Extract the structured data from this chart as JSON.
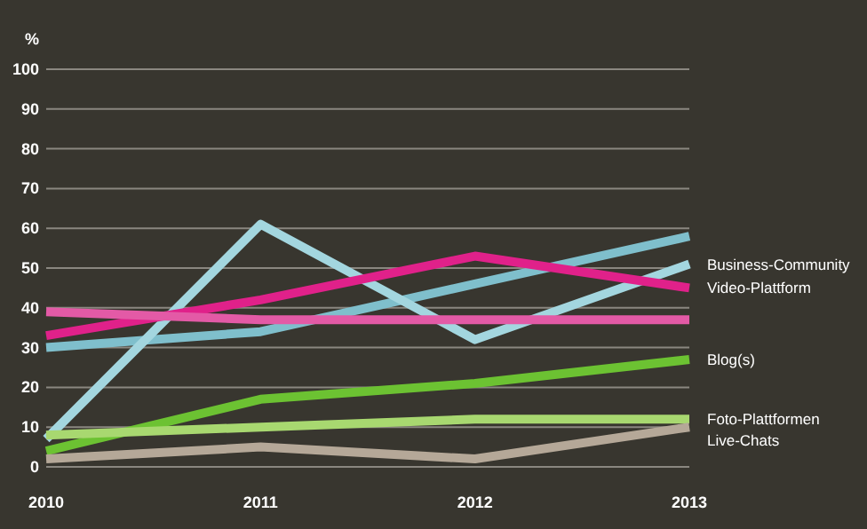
{
  "chart_data": {
    "type": "line",
    "ylabel": "%",
    "categories": [
      "2010",
      "2011",
      "2012",
      "2013"
    ],
    "ylim": [
      0,
      100
    ],
    "yticks": [
      0,
      10,
      20,
      30,
      40,
      50,
      60,
      70,
      80,
      90,
      100
    ],
    "grid": "y",
    "series": [
      {
        "name": null,
        "color": "#7fbfcc",
        "values": [
          30,
          34,
          46,
          58
        ]
      },
      {
        "name": "Business-Community",
        "color": "#a3d6df",
        "values": [
          7,
          61,
          32,
          51
        ]
      },
      {
        "name": "Video-Plattform",
        "color": "#e0218a",
        "values": [
          33,
          42,
          53,
          45
        ]
      },
      {
        "name": null,
        "color": "#e35aa6",
        "values": [
          39,
          37,
          37,
          37
        ]
      },
      {
        "name": "Blog(s)",
        "color": "#6cc232",
        "values": [
          4,
          17,
          21,
          27
        ]
      },
      {
        "name": "Foto-Plattformen",
        "color": "#a8d870",
        "values": [
          8,
          10,
          12,
          12
        ]
      },
      {
        "name": "Live-Chats",
        "color": "#b5a898",
        "values": [
          2,
          5,
          2,
          10
        ]
      }
    ]
  }
}
